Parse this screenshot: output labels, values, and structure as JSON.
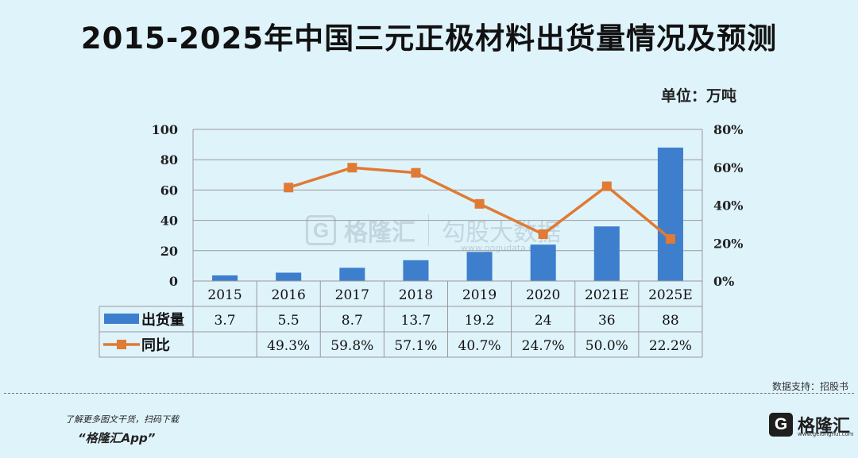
{
  "title": "2015-2025年中国三元正极材料出货量情况及预测",
  "unit": "单位：万吨",
  "source": "数据支持：招股书",
  "promo": "了解更多图文干货，扫码下载",
  "app": "“格隆汇App”",
  "brand": {
    "logo": "G",
    "name": "格隆汇",
    "site": "www.gelonghui.com"
  },
  "watermark": {
    "logo": "G",
    "name": "格隆汇",
    "name2": "勾股大数据",
    "url": "www.gogudata.com"
  },
  "colors": {
    "bar": "#3d7fcd",
    "line": "#e07a34",
    "grid": "#999999"
  },
  "chart_data": {
    "type": "bar",
    "categories": [
      "2015",
      "2016",
      "2017",
      "2018",
      "2019",
      "2020",
      "2021E",
      "2025E"
    ],
    "series": [
      {
        "name": "出货量",
        "type": "bar",
        "axis": "left",
        "values": [
          3.7,
          5.5,
          8.7,
          13.7,
          19.2,
          24,
          36,
          88
        ]
      },
      {
        "name": "同比",
        "type": "line",
        "axis": "right",
        "values": [
          null,
          49.3,
          59.8,
          57.1,
          40.7,
          24.7,
          50.0,
          22.2
        ]
      }
    ],
    "y_left": {
      "range": [
        0,
        100
      ],
      "ticks": [
        "0",
        "20",
        "40",
        "60",
        "80",
        "100"
      ]
    },
    "y_right": {
      "range": [
        0,
        80
      ],
      "ticks": [
        "0%",
        "20%",
        "40%",
        "60%",
        "80%"
      ]
    },
    "table": {
      "rows": [
        {
          "label": "出货量",
          "cells": [
            "3.7",
            "5.5",
            "8.7",
            "13.7",
            "19.2",
            "24",
            "36",
            "88"
          ]
        },
        {
          "label": "同比",
          "cells": [
            "",
            "49.3%",
            "59.8%",
            "57.1%",
            "40.7%",
            "24.7%",
            "50.0%",
            "22.2%"
          ]
        }
      ]
    },
    "grid": true
  }
}
